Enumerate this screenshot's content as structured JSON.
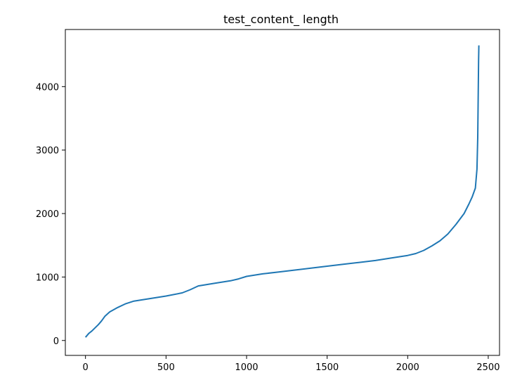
{
  "chart_data": {
    "type": "line",
    "title": "test_content_ length",
    "xlabel": "",
    "ylabel": "",
    "xlim": [
      -125,
      2570
    ],
    "ylim": [
      -235,
      4900
    ],
    "xticks": [
      0,
      500,
      1000,
      1500,
      2000,
      2500
    ],
    "yticks": [
      0,
      1000,
      2000,
      3000,
      4000
    ],
    "grid": false,
    "series": [
      {
        "color": "#1f77b4",
        "x": [
          0,
          20,
          40,
          60,
          80,
          100,
          120,
          150,
          200,
          250,
          300,
          400,
          500,
          600,
          650,
          700,
          800,
          900,
          950,
          1000,
          1100,
          1200,
          1300,
          1400,
          1500,
          1600,
          1700,
          1800,
          1900,
          2000,
          2050,
          2100,
          2150,
          2200,
          2250,
          2300,
          2350,
          2380,
          2400,
          2420,
          2430,
          2435,
          2438,
          2440,
          2442
        ],
        "values": [
          50,
          110,
          150,
          200,
          250,
          310,
          380,
          450,
          520,
          580,
          620,
          660,
          700,
          750,
          800,
          860,
          900,
          940,
          970,
          1010,
          1050,
          1080,
          1110,
          1140,
          1170,
          1200,
          1230,
          1260,
          1300,
          1340,
          1370,
          1420,
          1490,
          1570,
          1680,
          1830,
          2000,
          2150,
          2260,
          2400,
          2700,
          3200,
          3900,
          4400,
          4650
        ]
      }
    ]
  }
}
